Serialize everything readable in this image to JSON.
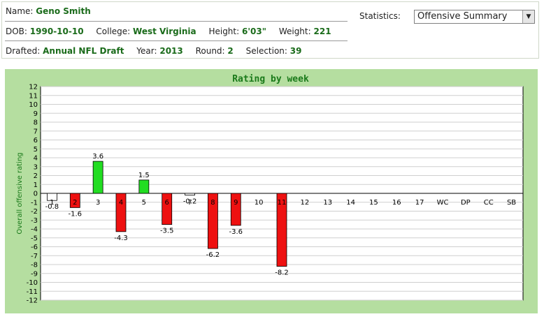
{
  "player": {
    "name_label": "Name:",
    "name": "Geno Smith",
    "dob_label": "DOB:",
    "dob": "1990-10-10",
    "college_label": "College:",
    "college": "West Virginia",
    "height_label": "Height:",
    "height": "6'03\"",
    "weight_label": "Weight:",
    "weight": "221",
    "drafted_label": "Drafted:",
    "drafted": "Annual NFL Draft",
    "year_label": "Year:",
    "year": "2013",
    "round_label": "Round:",
    "round": "2",
    "selection_label": "Selection:",
    "selection": "39"
  },
  "statistics": {
    "label": "Statistics:",
    "selected": "Offensive Summary"
  },
  "colors": {
    "positive": "#22dd22",
    "negative": "#ee1111",
    "panel": "#b5dea0",
    "title": "#1a7a1a"
  },
  "chart_data": {
    "type": "bar",
    "title": "Rating by week",
    "xlabel": "",
    "ylabel": "Overall offensive rating",
    "ylim": [
      -12,
      12
    ],
    "yticks": [
      12,
      11,
      10,
      9,
      8,
      7,
      6,
      5,
      4,
      3,
      2,
      1,
      0,
      -1,
      -2,
      -3,
      -4,
      -5,
      -6,
      -7,
      -8,
      -9,
      -10,
      -11,
      -12
    ],
    "categories": [
      "1",
      "2",
      "3",
      "4",
      "5",
      "6",
      "7",
      "8",
      "9",
      "10",
      "11",
      "12",
      "13",
      "14",
      "15",
      "16",
      "17",
      "WC",
      "DP",
      "CC",
      "SB"
    ],
    "values": [
      -0.8,
      -1.6,
      3.6,
      -4.3,
      1.5,
      -3.5,
      -0.2,
      -6.2,
      -3.6,
      null,
      -8.2,
      null,
      null,
      null,
      null,
      null,
      null,
      null,
      null,
      null,
      null
    ],
    "value_labels": [
      "-0.8",
      "-1.6",
      "3.6",
      "-4.3",
      "1.5",
      "-3.5",
      "-0.2",
      "-6.2",
      "-3.6",
      "",
      "-8.2",
      "",
      "",
      "",
      "",
      "",
      "",
      "",
      "",
      "",
      ""
    ],
    "grid": true,
    "legend": "none"
  }
}
